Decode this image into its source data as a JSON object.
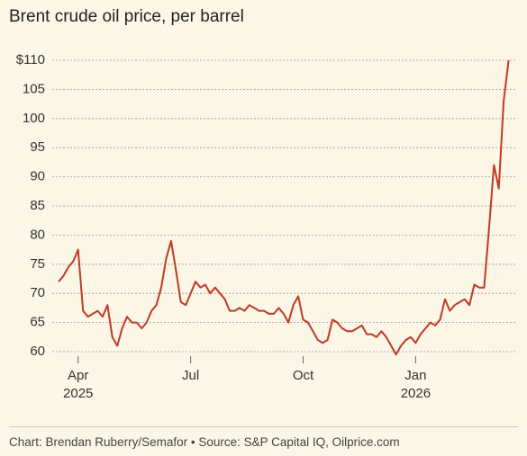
{
  "chart_data": {
    "type": "line",
    "title": "Brent crude oil price, per barrel",
    "source": "Chart: Brendan Ruberry/Semafor • Source: S&P Capital IQ, Oilprice.com",
    "categories": [
      null,
      null,
      null,
      null,
      "Apr 2025",
      null,
      null,
      null,
      null,
      null,
      null,
      null,
      null,
      null,
      null,
      null,
      null,
      null,
      null,
      null,
      null,
      null,
      null,
      null,
      null,
      null,
      null,
      "Jul",
      null,
      null,
      null,
      null,
      null,
      null,
      null,
      null,
      null,
      null,
      null,
      null,
      null,
      null,
      null,
      null,
      null,
      null,
      null,
      null,
      null,
      null,
      "Oct",
      null,
      null,
      null,
      null,
      null,
      null,
      null,
      null,
      null,
      null,
      null,
      null,
      null,
      null,
      null,
      null,
      null,
      null,
      null,
      null,
      null,
      null,
      "Jan 2026",
      null,
      null,
      null,
      null,
      null,
      null,
      null,
      null,
      null,
      null,
      null,
      null,
      null,
      null,
      null,
      null,
      null,
      null,
      null
    ],
    "series": [
      {
        "name": "Brent",
        "color": "#c03a24",
        "values": [
          72,
          73,
          74.5,
          75.5,
          77.5,
          67,
          66,
          66.5,
          67,
          66,
          68,
          62.5,
          61,
          64,
          66,
          65,
          65,
          64,
          65,
          67,
          68,
          71,
          76,
          79,
          74,
          68.5,
          68,
          70,
          72,
          71,
          71.5,
          70,
          71,
          70,
          69,
          67,
          67,
          67.5,
          67,
          68,
          67.5,
          67,
          67,
          66.5,
          66.5,
          67.5,
          66.5,
          65,
          68,
          69.5,
          65.5,
          65,
          63.5,
          62,
          61.5,
          62,
          65.5,
          65,
          64,
          63.5,
          63.5,
          64,
          64.5,
          63,
          63,
          62.5,
          63.5,
          62.5,
          61,
          59.5,
          61,
          62,
          62.5,
          61.5,
          63,
          64,
          65,
          64.5,
          65.5,
          69,
          67,
          68,
          68.5,
          69,
          68,
          71.5,
          71,
          71,
          81,
          92,
          88,
          103,
          110
        ]
      }
    ],
    "ylim": [
      60,
      110
    ],
    "yticks": [
      {
        "value": 110,
        "label": "$110"
      },
      105,
      100,
      95,
      90,
      85,
      80,
      75,
      70,
      65,
      60
    ],
    "grid": true
  }
}
